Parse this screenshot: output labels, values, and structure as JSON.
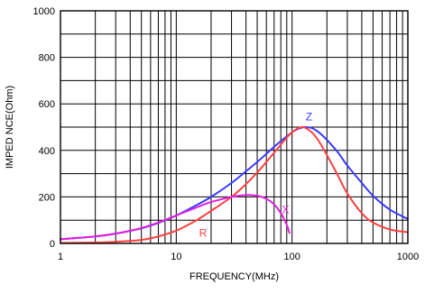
{
  "chart_data": {
    "type": "line",
    "title": "",
    "xlabel": "FREQUENCY(MHz)",
    "ylabel": "IMPED NCE(Ohm)",
    "xscale": "log",
    "xlim": [
      1,
      1000
    ],
    "ylim": [
      0,
      1000
    ],
    "grid": true,
    "x_ticks": [
      {
        "value": 1,
        "label": "1"
      },
      {
        "value": 10,
        "label": "10"
      },
      {
        "value": 100,
        "label": "100"
      },
      {
        "value": 1000,
        "label": "1000"
      }
    ],
    "y_ticks": [
      {
        "value": 0,
        "label": "0"
      },
      {
        "value": 200,
        "label": "200"
      },
      {
        "value": 400,
        "label": "400"
      },
      {
        "value": 600,
        "label": "600"
      },
      {
        "value": 800,
        "label": "800"
      },
      {
        "value": 1000,
        "label": "1000"
      }
    ],
    "series": [
      {
        "name": "Z",
        "color": "#3a3aff",
        "x": [
          1,
          2,
          3,
          5,
          7,
          10,
          15,
          20,
          30,
          40,
          50,
          60,
          70,
          80,
          90,
          100,
          110,
          120,
          130,
          150,
          170,
          200,
          250,
          300,
          400,
          500,
          700,
          1000
        ],
        "y": [
          18,
          30,
          42,
          65,
          88,
          120,
          165,
          200,
          260,
          310,
          350,
          385,
          415,
          440,
          460,
          478,
          490,
          497,
          500,
          495,
          478,
          445,
          390,
          335,
          260,
          205,
          145,
          105
        ],
        "label_at": {
          "x": 140,
          "y": 530
        }
      },
      {
        "name": "R",
        "color": "#ff4040",
        "x": [
          1,
          2,
          3,
          5,
          7,
          10,
          15,
          20,
          30,
          40,
          50,
          60,
          70,
          80,
          90,
          100,
          110,
          120,
          130,
          150,
          170,
          200,
          250,
          300,
          400,
          500,
          700,
          1000
        ],
        "y": [
          2,
          4,
          7,
          15,
          30,
          55,
          100,
          140,
          200,
          255,
          305,
          350,
          390,
          425,
          455,
          478,
          492,
          500,
          497,
          475,
          440,
          380,
          290,
          215,
          130,
          90,
          60,
          48
        ],
        "label_at": {
          "x": 17,
          "y": 30
        }
      },
      {
        "name": "X",
        "color": "#e020e0",
        "x": [
          1,
          2,
          3,
          5,
          7,
          10,
          15,
          20,
          30,
          40,
          50,
          60,
          70,
          80,
          90,
          95
        ],
        "y": [
          18,
          30,
          42,
          66,
          90,
          120,
          155,
          178,
          200,
          208,
          205,
          192,
          168,
          130,
          80,
          45
        ],
        "label_at": {
          "x": 88,
          "y": 130
        }
      }
    ]
  }
}
